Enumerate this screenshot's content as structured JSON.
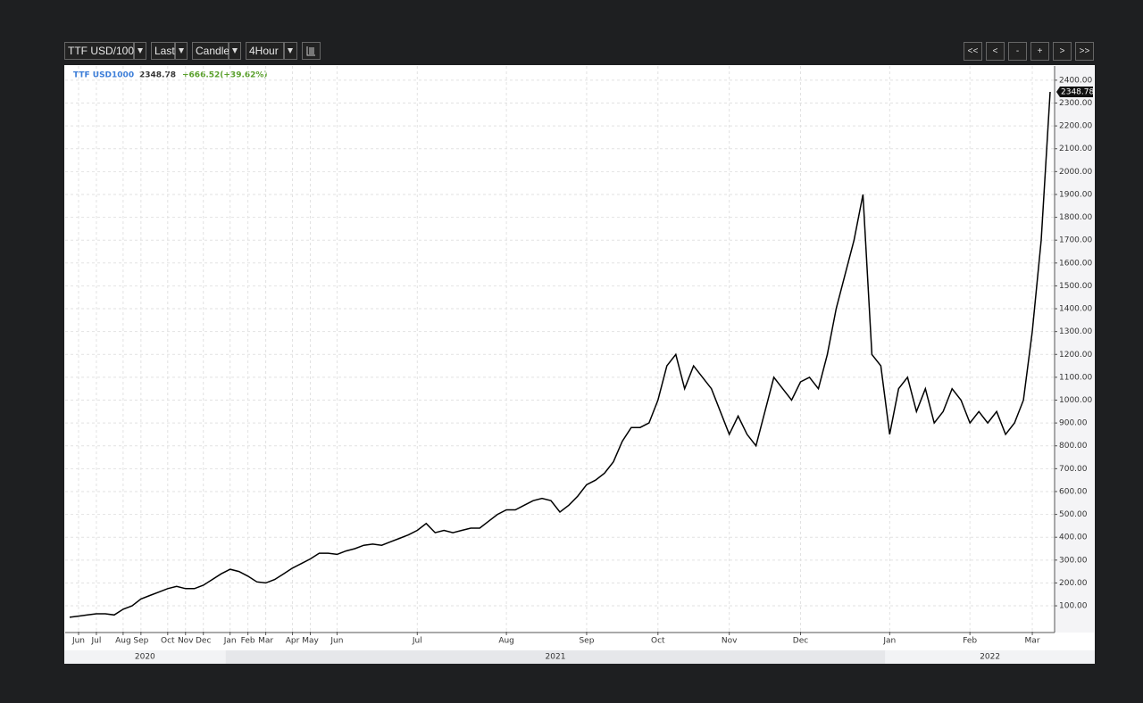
{
  "toolbar": {
    "symbol": "TTF USD/100",
    "price_field": "Last",
    "chart_style": "Candle",
    "interval": "4Hour",
    "nav": [
      "<<",
      "<",
      "-",
      "+",
      ">",
      ">>"
    ]
  },
  "chart_data": {
    "type": "line",
    "symbol": "TTF USD1000",
    "change": "+666.52(+39.62%)",
    "categories": [
      null,
      "Jun",
      null,
      "Jul",
      null,
      null,
      "Aug",
      null,
      "Sep",
      null,
      null,
      "Oct",
      null,
      "Nov",
      null,
      "Dec",
      null,
      null,
      "Jan",
      null,
      "Feb",
      null,
      "Mar",
      null,
      null,
      "Apr",
      null,
      "May",
      null,
      null,
      "Jun",
      null,
      null,
      null,
      null,
      null,
      null,
      null,
      null,
      "Jul",
      null,
      null,
      null,
      null,
      null,
      null,
      null,
      null,
      null,
      "Aug",
      null,
      null,
      null,
      null,
      null,
      null,
      null,
      null,
      "Sep",
      null,
      null,
      null,
      null,
      null,
      null,
      null,
      "Oct",
      null,
      null,
      null,
      null,
      null,
      null,
      null,
      "Nov",
      null,
      null,
      null,
      null,
      null,
      null,
      null,
      "Dec",
      null,
      null,
      null,
      null,
      null,
      null,
      null,
      null,
      null,
      "Jan",
      null,
      null,
      null,
      null,
      null,
      null,
      null,
      null,
      "Feb",
      null,
      null,
      null,
      null,
      null,
      null,
      "Mar",
      null,
      null
    ],
    "years": [
      "2020",
      "2021",
      "2022"
    ],
    "series": [
      {
        "name": "TTF USD1000",
        "color": "#000000",
        "values": [
          50,
          55,
          60,
          65,
          65,
          60,
          85,
          100,
          130,
          145,
          160,
          175,
          185,
          175,
          175,
          190,
          215,
          240,
          260,
          250,
          230,
          205,
          200,
          215,
          240,
          265,
          285,
          305,
          330,
          330,
          325,
          340,
          350,
          365,
          370,
          365,
          380,
          395,
          410,
          430,
          460,
          420,
          430,
          420,
          430,
          440,
          440,
          470,
          500,
          520,
          520,
          540,
          560,
          570,
          560,
          510,
          540,
          580,
          630,
          650,
          680,
          730,
          820,
          880,
          880,
          900,
          1000,
          1150,
          1200,
          1050,
          1150,
          1100,
          1050,
          950,
          850,
          930,
          850,
          800,
          950,
          1100,
          1050,
          1000,
          1080,
          1100,
          1050,
          1200,
          1400,
          1550,
          1700,
          1900,
          1200,
          1150,
          850,
          1050,
          1100,
          950,
          1050,
          900,
          950,
          1050,
          1000,
          900,
          950,
          900,
          950,
          850,
          900,
          1000,
          1300,
          1700,
          2348.78
        ]
      }
    ],
    "ylim": [
      -13,
      2462
    ],
    "yticks": [
      {
        "value": 100,
        "label": "100.00"
      },
      {
        "value": 200,
        "label": "200.00"
      },
      {
        "value": 300,
        "label": "300.00"
      },
      {
        "value": 400,
        "label": "400.00"
      },
      {
        "value": 500,
        "label": "500.00"
      },
      {
        "value": 600,
        "label": "600.00"
      },
      {
        "value": 700,
        "label": "700.00"
      },
      {
        "value": 800,
        "label": "800.00"
      },
      {
        "value": 900,
        "label": "900.00"
      },
      {
        "value": 1000,
        "label": "1000.00"
      },
      {
        "value": 1100,
        "label": "1100.00"
      },
      {
        "value": 1200,
        "label": "1200.00"
      },
      {
        "value": 1300,
        "label": "1300.00"
      },
      {
        "value": 1400,
        "label": "1400.00"
      },
      {
        "value": 1500,
        "label": "1500.00"
      },
      {
        "value": 1600,
        "label": "1600.00"
      },
      {
        "value": 1700,
        "label": "1700.00"
      },
      {
        "value": 1800,
        "label": "1800.00"
      },
      {
        "value": 1900,
        "label": "1900.00"
      },
      {
        "value": 2000,
        "label": "2000.00"
      },
      {
        "value": 2100,
        "label": "2100.00"
      },
      {
        "value": 2200,
        "label": "2200.00"
      },
      {
        "value": 2300,
        "label": "2300.00"
      },
      {
        "value": 2400,
        "label": "2400.00"
      }
    ],
    "grid": true
  }
}
